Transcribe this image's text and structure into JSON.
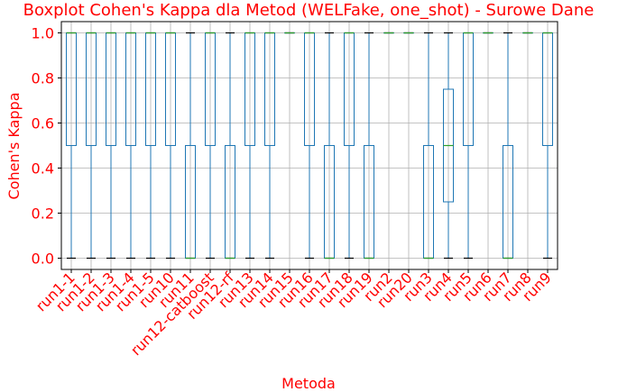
{
  "chart_data": {
    "type": "boxplot",
    "title": "Boxplot Cohen's Kappa dla Metod (WELFake, one_shot) - Surowe Dane",
    "xlabel": "Metoda",
    "ylabel": "Cohen's Kappa",
    "ylim": [
      -0.05,
      1.05
    ],
    "yticks": [
      "0.0",
      "0.2",
      "0.4",
      "0.6",
      "0.8",
      "1.0"
    ],
    "grid": true,
    "colors": {
      "box": "#1f77b4",
      "median": "#2ca02c",
      "title": "#ff0000",
      "axis_text": "#ff0000"
    },
    "categories": [
      "run1-1",
      "run1-2",
      "run1-3",
      "run1-4",
      "run1-5",
      "run10",
      "run11",
      "run12-catboost",
      "run12-rf",
      "run13",
      "run14",
      "run15",
      "run16",
      "run17",
      "run18",
      "run19",
      "run2",
      "run20",
      "run3",
      "run4",
      "run5",
      "run6",
      "run7",
      "run8",
      "run9"
    ],
    "boxes": [
      {
        "min": 0,
        "q1": 0.5,
        "median": 1,
        "q3": 1,
        "max": 1
      },
      {
        "min": 0,
        "q1": 0.5,
        "median": 1,
        "q3": 1,
        "max": 1
      },
      {
        "min": 0,
        "q1": 0.5,
        "median": 1,
        "q3": 1,
        "max": 1
      },
      {
        "min": 0,
        "q1": 0.5,
        "median": 1,
        "q3": 1,
        "max": 1
      },
      {
        "min": 0,
        "q1": 0.5,
        "median": 1,
        "q3": 1,
        "max": 1
      },
      {
        "min": 0,
        "q1": 0.5,
        "median": 1,
        "q3": 1,
        "max": 1
      },
      {
        "min": 0,
        "q1": 0,
        "median": 0,
        "q3": 0.5,
        "max": 1
      },
      {
        "min": 0,
        "q1": 0.5,
        "median": 1,
        "q3": 1,
        "max": 1
      },
      {
        "min": 0,
        "q1": 0,
        "median": 0,
        "q3": 0.5,
        "max": 1
      },
      {
        "min": 0,
        "q1": 0.5,
        "median": 1,
        "q3": 1,
        "max": 1
      },
      {
        "min": 0,
        "q1": 0.5,
        "median": 1,
        "q3": 1,
        "max": 1
      },
      {
        "min": 1,
        "q1": 1,
        "median": 1,
        "q3": 1,
        "max": 1
      },
      {
        "min": 0,
        "q1": 0.5,
        "median": 1,
        "q3": 1,
        "max": 1
      },
      {
        "min": 0,
        "q1": 0,
        "median": 0,
        "q3": 0.5,
        "max": 1
      },
      {
        "min": 0,
        "q1": 0.5,
        "median": 1,
        "q3": 1,
        "max": 1
      },
      {
        "min": 0,
        "q1": 0,
        "median": 0,
        "q3": 0.5,
        "max": 1
      },
      {
        "min": 1,
        "q1": 1,
        "median": 1,
        "q3": 1,
        "max": 1
      },
      {
        "min": 1,
        "q1": 1,
        "median": 1,
        "q3": 1,
        "max": 1
      },
      {
        "min": 0,
        "q1": 0,
        "median": 0,
        "q3": 0.5,
        "max": 1
      },
      {
        "min": 0,
        "q1": 0.25,
        "median": 0.5,
        "q3": 0.75,
        "max": 1
      },
      {
        "min": 0,
        "q1": 0.5,
        "median": 1,
        "q3": 1,
        "max": 1
      },
      {
        "min": 1,
        "q1": 1,
        "median": 1,
        "q3": 1,
        "max": 1
      },
      {
        "min": 0,
        "q1": 0,
        "median": 0,
        "q3": 0.5,
        "max": 1
      },
      {
        "min": 1,
        "q1": 1,
        "median": 1,
        "q3": 1,
        "max": 1
      },
      {
        "min": 0,
        "q1": 0.5,
        "median": 1,
        "q3": 1,
        "max": 1
      }
    ]
  }
}
